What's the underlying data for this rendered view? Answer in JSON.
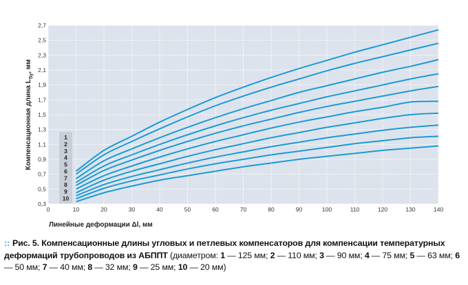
{
  "chart_data": {
    "type": "line",
    "ylabel": "Компенсационная длина L",
    "ylabel_sub": "Sy",
    "ylabel_unit": ", мм",
    "xlabel": "Линейные деформации Δl, мм",
    "xlim": [
      0,
      140
    ],
    "ylim": [
      0.3,
      2.7
    ],
    "xticks": [
      "0",
      "10",
      "20",
      "30",
      "40",
      "50",
      "60",
      "70",
      "80",
      "90",
      "100",
      "110",
      "120",
      "130",
      "140"
    ],
    "yticks": [
      "0,3",
      "0,5",
      "0,7",
      "0,9",
      "1,1",
      "1,3",
      "1,5",
      "1,7",
      "1,9",
      "2,1",
      "2,3",
      "2,5",
      "2,7"
    ],
    "grid": true,
    "line_color": "#1a9ad6",
    "plot_bg": "#dde3ec",
    "x": [
      10,
      20,
      30,
      40,
      50,
      60,
      70,
      80,
      90,
      100,
      110,
      120,
      130,
      140
    ],
    "series": [
      {
        "name": "1",
        "values": [
          0.74,
          1.02,
          1.21,
          1.4,
          1.57,
          1.73,
          1.87,
          2.0,
          2.12,
          2.23,
          2.34,
          2.44,
          2.54,
          2.64
        ]
      },
      {
        "name": "2",
        "values": [
          0.7,
          0.96,
          1.14,
          1.31,
          1.47,
          1.62,
          1.75,
          1.87,
          1.98,
          2.09,
          2.19,
          2.28,
          2.37,
          2.46
        ]
      },
      {
        "name": "3",
        "values": [
          0.64,
          0.88,
          1.04,
          1.19,
          1.33,
          1.46,
          1.58,
          1.69,
          1.8,
          1.89,
          1.98,
          2.07,
          2.15,
          2.24
        ]
      },
      {
        "name": "4",
        "values": [
          0.59,
          0.81,
          0.96,
          1.1,
          1.23,
          1.35,
          1.46,
          1.56,
          1.65,
          1.74,
          1.82,
          1.9,
          1.98,
          2.05
        ]
      },
      {
        "name": "5",
        "values": [
          0.55,
          0.75,
          0.89,
          1.02,
          1.14,
          1.25,
          1.35,
          1.44,
          1.53,
          1.61,
          1.68,
          1.75,
          1.82,
          1.88
        ]
      },
      {
        "name": "6",
        "values": [
          0.5,
          0.68,
          0.81,
          0.93,
          1.04,
          1.14,
          1.23,
          1.32,
          1.4,
          1.47,
          1.54,
          1.6,
          1.67,
          1.68
        ]
      },
      {
        "name": "7",
        "values": [
          0.45,
          0.62,
          0.74,
          0.84,
          0.94,
          1.03,
          1.11,
          1.19,
          1.26,
          1.33,
          1.39,
          1.45,
          1.5,
          1.52
        ]
      },
      {
        "name": "8",
        "values": [
          0.41,
          0.56,
          0.67,
          0.76,
          0.85,
          0.93,
          1.0,
          1.07,
          1.13,
          1.19,
          1.24,
          1.29,
          1.33,
          1.36
        ]
      },
      {
        "name": "9",
        "values": [
          0.37,
          0.51,
          0.61,
          0.69,
          0.77,
          0.84,
          0.9,
          0.96,
          1.01,
          1.06,
          1.11,
          1.15,
          1.19,
          1.21
        ]
      },
      {
        "name": "10",
        "values": [
          0.33,
          0.45,
          0.54,
          0.62,
          0.68,
          0.74,
          0.8,
          0.85,
          0.9,
          0.94,
          0.98,
          1.02,
          1.05,
          1.08
        ]
      }
    ]
  },
  "caption": {
    "marker": "::",
    "fig_label": "Рис. 5.",
    "title": "Компенсационные длины угловых и петлевых компенсаторов для компенсации температурных деформаций трубопроводов из АБППТ",
    "legend_intro": "(диаметром:",
    "legend": [
      {
        "num": "1",
        "text": "— 125 мм;"
      },
      {
        "num": "2",
        "text": "— 110 мм;"
      },
      {
        "num": "3",
        "text": "— 90 мм;"
      },
      {
        "num": "4",
        "text": "— 75 мм;"
      },
      {
        "num": "5",
        "text": "— 63 мм;"
      },
      {
        "num": "6",
        "text": "— 50 мм;"
      },
      {
        "num": "7",
        "text": "— 40 мм;"
      },
      {
        "num": "8",
        "text": "— 32 мм;"
      },
      {
        "num": "9",
        "text": "— 25 мм;"
      },
      {
        "num": "10",
        "text": "— 20 мм)"
      }
    ]
  }
}
